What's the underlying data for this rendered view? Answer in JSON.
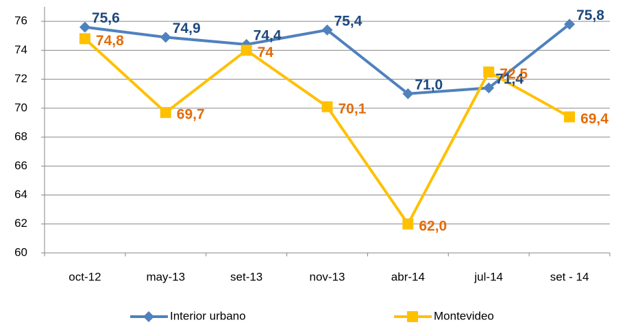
{
  "chart_data": {
    "type": "line",
    "categories": [
      "oct-12",
      "may-13",
      "set-13",
      "nov-13",
      "abr-14",
      "jul-14",
      "set - 14"
    ],
    "series": [
      {
        "name": "Interior urbano",
        "color": "#4f81bd",
        "label_color": "#1f497d",
        "marker": "diamond",
        "values": [
          75.6,
          74.9,
          74.4,
          75.4,
          71.0,
          71.4,
          75.8
        ],
        "value_labels": [
          "75,6",
          "74,9",
          "74,4",
          "75,4",
          "71,0",
          "71,4",
          "75,8"
        ]
      },
      {
        "name": "Montevideo",
        "color": "#ffc000",
        "label_color": "#e36c09",
        "marker": "square",
        "values": [
          74.8,
          69.7,
          74,
          70.1,
          62.0,
          72.5,
          69.4
        ],
        "value_labels": [
          "74,8",
          "69,7",
          "74",
          "70,1",
          "62,0",
          "72,5",
          "69,4"
        ]
      }
    ],
    "ylim": [
      60,
      77
    ],
    "yticks": [
      60,
      62,
      64,
      66,
      68,
      70,
      72,
      74,
      76
    ],
    "grid": true,
    "legend": "bottom"
  }
}
